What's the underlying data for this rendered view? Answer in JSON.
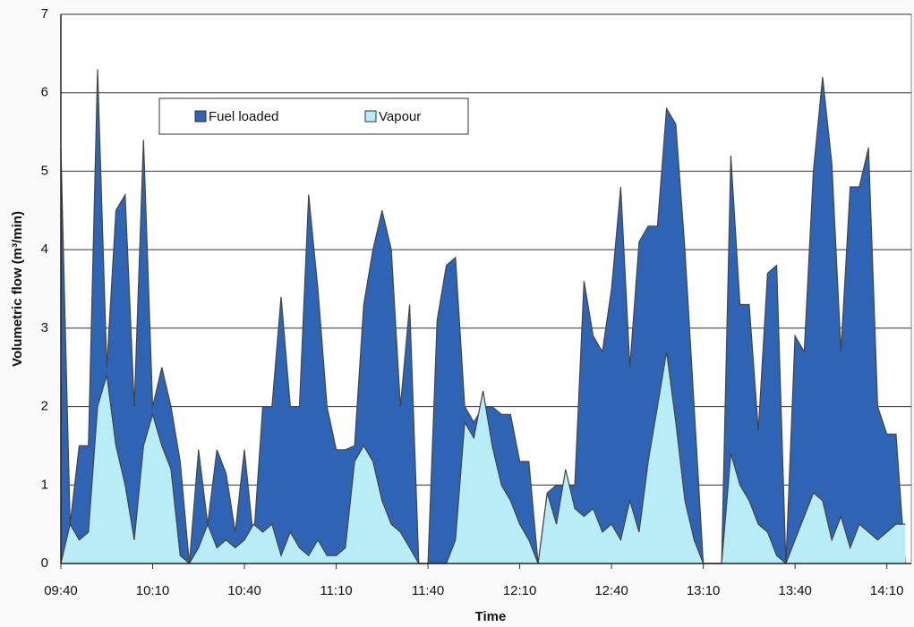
{
  "chart_data": {
    "type": "area",
    "xlabel": "Time",
    "ylabel": "Volumetric flow (m³/min)",
    "x": [
      "09:40",
      "09:43",
      "09:46",
      "09:49",
      "09:52",
      "09:55",
      "09:58",
      "10:01",
      "10:04",
      "10:07",
      "10:10",
      "10:13",
      "10:16",
      "10:19",
      "10:22",
      "10:25",
      "10:28",
      "10:31",
      "10:34",
      "10:37",
      "10:40",
      "10:43",
      "10:46",
      "10:49",
      "10:52",
      "10:55",
      "10:58",
      "11:01",
      "11:04",
      "11:07",
      "11:10",
      "11:13",
      "11:16",
      "11:19",
      "11:22",
      "11:25",
      "11:28",
      "11:31",
      "11:34",
      "11:37",
      "11:40",
      "11:43",
      "11:46",
      "11:49",
      "11:52",
      "11:55",
      "11:58",
      "12:01",
      "12:04",
      "12:07",
      "12:10",
      "12:13",
      "12:16",
      "12:19",
      "12:22",
      "12:25",
      "12:28",
      "12:31",
      "12:34",
      "12:37",
      "12:40",
      "12:43",
      "12:46",
      "12:49",
      "12:52",
      "12:55",
      "12:58",
      "13:01",
      "13:04",
      "13:07",
      "13:10",
      "13:13",
      "13:16",
      "13:19",
      "13:22",
      "13:25",
      "13:28",
      "13:31",
      "13:34",
      "13:37",
      "13:40",
      "13:43",
      "13:46",
      "13:49",
      "13:52",
      "13:55",
      "13:58",
      "14:01",
      "14:04",
      "14:07",
      "14:10",
      "14:13",
      "14:16"
    ],
    "series": [
      {
        "name": "Fuel loaded",
        "color": "#2f64b4",
        "values": [
          5.3,
          0.5,
          1.5,
          1.5,
          6.3,
          2.5,
          4.5,
          4.7,
          2.0,
          5.4,
          2.0,
          2.5,
          2.0,
          1.3,
          0,
          1.45,
          0.5,
          1.45,
          1.15,
          0.4,
          1.45,
          0.3,
          2.0,
          2.0,
          3.4,
          2.0,
          2.0,
          4.7,
          3.5,
          2.0,
          1.45,
          1.45,
          1.5,
          3.3,
          4.0,
          4.5,
          4.0,
          2.0,
          3.3,
          0,
          0,
          3.1,
          3.8,
          3.9,
          2.0,
          1.8,
          2.0,
          2.0,
          1.9,
          1.9,
          1.3,
          1.3,
          0,
          0.9,
          1.0,
          1.0,
          1.0,
          3.6,
          2.9,
          2.7,
          3.5,
          4.8,
          2.5,
          4.1,
          4.3,
          4.3,
          5.8,
          5.6,
          4.0,
          2.0,
          0,
          0,
          0,
          5.2,
          3.3,
          3.3,
          1.7,
          3.7,
          3.8,
          0,
          2.9,
          2.7,
          5.0,
          6.2,
          5.1,
          2.7,
          4.8,
          4.8,
          5.3,
          2.0,
          1.65,
          1.65,
          0
        ]
      },
      {
        "name": "Vapour",
        "color": "#b8ecf7",
        "values": [
          0,
          0.5,
          0.3,
          0.4,
          2.0,
          2.4,
          1.5,
          1.0,
          0.3,
          1.5,
          1.9,
          1.5,
          1.2,
          0.1,
          0,
          0.2,
          0.5,
          0.2,
          0.3,
          0.2,
          0.3,
          0.5,
          0.4,
          0.5,
          0.1,
          0.4,
          0.2,
          0.1,
          0.3,
          0.1,
          0.1,
          0.2,
          1.3,
          1.5,
          1.3,
          0.8,
          0.5,
          0.4,
          0.2,
          0,
          0,
          0,
          0,
          0.3,
          1.8,
          1.6,
          2.2,
          1.5,
          1.0,
          0.8,
          0.5,
          0.3,
          0,
          0.9,
          0.5,
          1.2,
          0.7,
          0.6,
          0.7,
          0.4,
          0.5,
          0.3,
          0.8,
          0.4,
          1.3,
          2.0,
          2.7,
          1.8,
          0.8,
          0.3,
          0,
          0,
          0,
          1.4,
          1.0,
          0.8,
          0.5,
          0.4,
          0.1,
          0,
          0.3,
          0.6,
          0.9,
          0.8,
          0.3,
          0.6,
          0.2,
          0.5,
          0.4,
          0.3,
          0.4,
          0.5,
          0.5
        ]
      }
    ],
    "xlim": [
      "09:40",
      "14:18"
    ],
    "xticks": [
      "09:40",
      "10:10",
      "10:40",
      "11:10",
      "11:40",
      "12:10",
      "12:40",
      "13:10",
      "13:40",
      "14:10"
    ],
    "ylim": [
      0,
      7
    ],
    "yticks": [
      0,
      1,
      2,
      3,
      4,
      5,
      6,
      7
    ],
    "grid": true
  }
}
